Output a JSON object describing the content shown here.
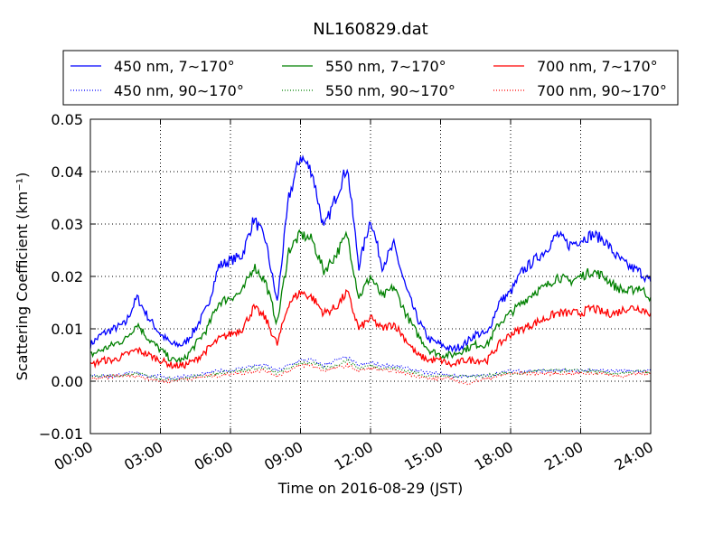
{
  "chart_data": {
    "type": "line",
    "title": "NL160829.dat",
    "xlabel": "Time on 2016-08-29 (JST)",
    "ylabel": "Scattering Coefficient (km⁻¹)",
    "xlim": [
      "00:00",
      "24:00"
    ],
    "ylim": [
      -0.01,
      0.05
    ],
    "x_ticks": [
      "00:00",
      "03:00",
      "06:00",
      "09:00",
      "12:00",
      "15:00",
      "18:00",
      "21:00",
      "24:00"
    ],
    "y_ticks": [
      "−0.01",
      "0.00",
      "0.01",
      "0.02",
      "0.03",
      "0.04",
      "0.05"
    ],
    "grid": true,
    "legend_position": "top",
    "x_hours": [
      0,
      0.5,
      1,
      1.5,
      2,
      2.5,
      3,
      3.5,
      4,
      4.5,
      5,
      5.5,
      6,
      6.5,
      7,
      7.5,
      8,
      8.5,
      9,
      9.5,
      10,
      10.5,
      11,
      11.5,
      12,
      12.5,
      13,
      13.5,
      14,
      14.5,
      15,
      15.5,
      16,
      16.5,
      17,
      17.5,
      18,
      18.5,
      19,
      19.5,
      20,
      20.5,
      21,
      21.5,
      22,
      22.5,
      23,
      23.5,
      24
    ],
    "series": [
      {
        "name": "450 nm, 7∼170°",
        "color": "#0000ff",
        "style": "solid",
        "values": [
          0.007,
          0.009,
          0.01,
          0.011,
          0.016,
          0.012,
          0.009,
          0.007,
          0.007,
          0.01,
          0.014,
          0.022,
          0.023,
          0.024,
          0.031,
          0.027,
          0.015,
          0.035,
          0.043,
          0.04,
          0.029,
          0.035,
          0.041,
          0.022,
          0.031,
          0.022,
          0.026,
          0.018,
          0.012,
          0.008,
          0.007,
          0.006,
          0.007,
          0.009,
          0.009,
          0.015,
          0.017,
          0.021,
          0.023,
          0.025,
          0.028,
          0.026,
          0.027,
          0.028,
          0.027,
          0.024,
          0.022,
          0.021,
          0.019
        ]
      },
      {
        "name": "550 nm, 7∼170°",
        "color": "#008000",
        "style": "solid",
        "values": [
          0.005,
          0.006,
          0.007,
          0.008,
          0.011,
          0.008,
          0.006,
          0.004,
          0.004,
          0.007,
          0.01,
          0.015,
          0.016,
          0.017,
          0.022,
          0.019,
          0.011,
          0.025,
          0.028,
          0.027,
          0.021,
          0.024,
          0.028,
          0.016,
          0.02,
          0.016,
          0.018,
          0.013,
          0.009,
          0.006,
          0.005,
          0.005,
          0.006,
          0.007,
          0.007,
          0.011,
          0.013,
          0.015,
          0.017,
          0.018,
          0.02,
          0.019,
          0.02,
          0.021,
          0.02,
          0.018,
          0.017,
          0.018,
          0.016
        ]
      },
      {
        "name": "700 nm, 7∼170°",
        "color": "#ff0000",
        "style": "solid",
        "values": [
          0.003,
          0.004,
          0.004,
          0.005,
          0.006,
          0.005,
          0.004,
          0.003,
          0.003,
          0.004,
          0.006,
          0.008,
          0.009,
          0.01,
          0.014,
          0.012,
          0.007,
          0.015,
          0.017,
          0.016,
          0.013,
          0.014,
          0.017,
          0.01,
          0.012,
          0.01,
          0.011,
          0.008,
          0.005,
          0.004,
          0.004,
          0.003,
          0.004,
          0.004,
          0.004,
          0.007,
          0.009,
          0.01,
          0.011,
          0.012,
          0.013,
          0.013,
          0.013,
          0.014,
          0.013,
          0.013,
          0.014,
          0.014,
          0.013
        ]
      },
      {
        "name": "450 nm, 90∼170°",
        "color": "#0000ff",
        "style": "dotted",
        "values": [
          0.001,
          0.001,
          0.001,
          0.0015,
          0.0015,
          0.001,
          0.001,
          0.0005,
          0.001,
          0.001,
          0.0015,
          0.002,
          0.002,
          0.0025,
          0.003,
          0.003,
          0.002,
          0.003,
          0.004,
          0.004,
          0.003,
          0.004,
          0.0045,
          0.003,
          0.0035,
          0.003,
          0.003,
          0.0025,
          0.002,
          0.0015,
          0.0015,
          0.001,
          0.001,
          0.001,
          0.001,
          0.0015,
          0.002,
          0.002,
          0.002,
          0.002,
          0.002,
          0.002,
          0.002,
          0.002,
          0.002,
          0.002,
          0.002,
          0.002,
          0.002
        ]
      },
      {
        "name": "550 nm, 90∼170°",
        "color": "#008000",
        "style": "dotted",
        "values": [
          0.001,
          0.001,
          0.001,
          0.001,
          0.0015,
          0.001,
          0.0005,
          0.0005,
          0.0005,
          0.001,
          0.001,
          0.0015,
          0.002,
          0.002,
          0.0025,
          0.0025,
          0.0015,
          0.0025,
          0.0035,
          0.0035,
          0.0025,
          0.003,
          0.004,
          0.0025,
          0.003,
          0.0025,
          0.0025,
          0.002,
          0.0015,
          0.001,
          0.001,
          0.001,
          0.001,
          0.001,
          0.001,
          0.0015,
          0.0015,
          0.0015,
          0.002,
          0.002,
          0.002,
          0.002,
          0.002,
          0.002,
          0.0015,
          0.0015,
          0.0015,
          0.002,
          0.0015
        ]
      },
      {
        "name": "700 nm, 90∼170°",
        "color": "#ff0000",
        "style": "dotted",
        "values": [
          0.0005,
          0.0005,
          0.001,
          0.001,
          0.001,
          0.0005,
          0.0,
          0.0,
          0.0005,
          0.0005,
          0.001,
          0.001,
          0.0015,
          0.0015,
          0.002,
          0.002,
          0.001,
          0.002,
          0.003,
          0.003,
          0.002,
          0.0025,
          0.003,
          0.002,
          0.0025,
          0.002,
          0.002,
          0.0015,
          0.001,
          0.0005,
          0.0005,
          0.0005,
          -0.0005,
          0.0,
          0.0005,
          0.001,
          0.0015,
          0.0015,
          0.0015,
          0.0015,
          0.0015,
          0.0015,
          0.0015,
          0.0015,
          0.0015,
          0.001,
          0.001,
          0.0015,
          0.0015
        ]
      }
    ]
  }
}
